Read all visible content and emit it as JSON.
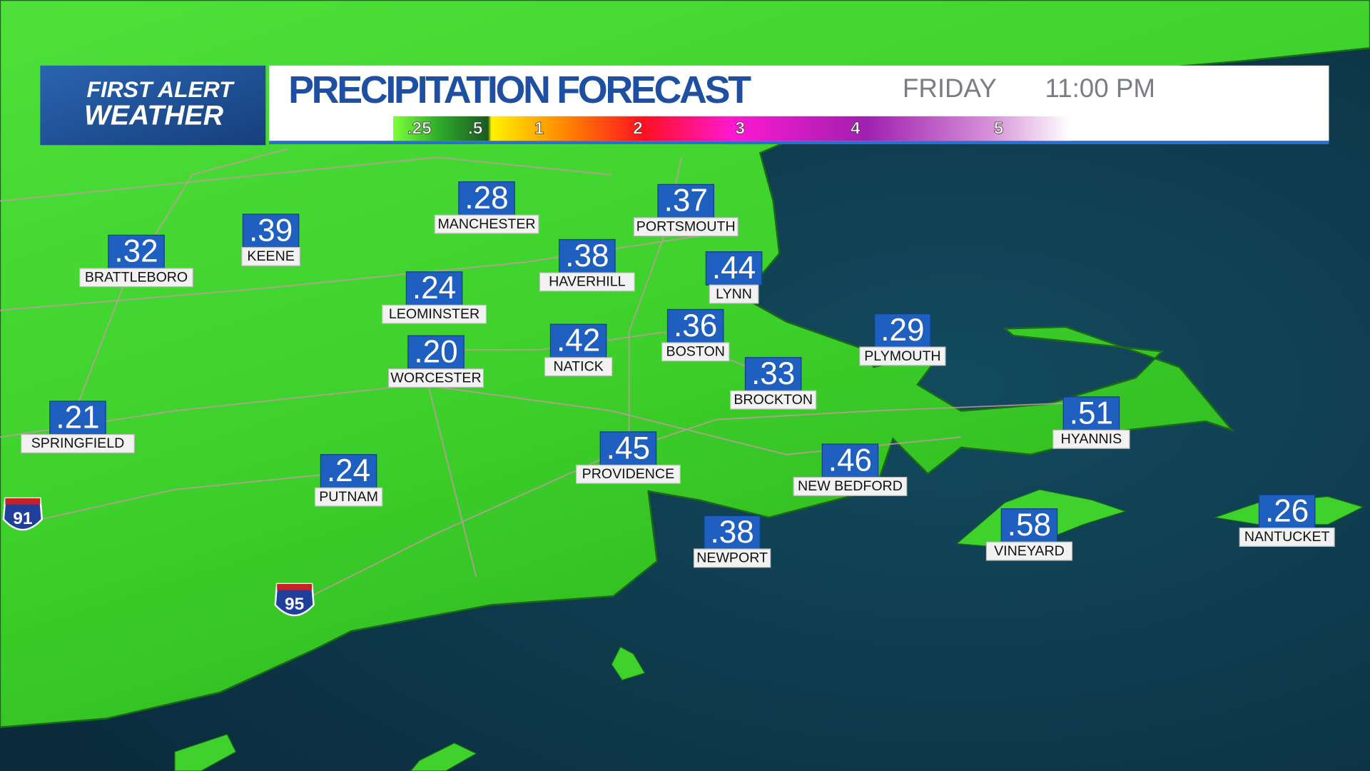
{
  "header": {
    "logo": [
      "FIRST ALERT",
      "WEATHER"
    ],
    "title": "PRECIPITATION FORECAST",
    "day": "FRIDAY",
    "time": "11:00 PM",
    "scale_labels": [
      ".25",
      ".5",
      "1",
      "2",
      "3",
      "4",
      "5"
    ]
  },
  "cities": [
    {
      "name": "MANCHESTER",
      "value": ".28"
    },
    {
      "name": "PORTSMOUTH",
      "value": ".37"
    },
    {
      "name": "KEENE",
      "value": ".39"
    },
    {
      "name": "BRATTLEBORO",
      "value": ".32"
    },
    {
      "name": "HAVERHILL",
      "value": ".38"
    },
    {
      "name": "LYNN",
      "value": ".44"
    },
    {
      "name": "LEOMINSTER",
      "value": ".24"
    },
    {
      "name": "BOSTON",
      "value": ".36"
    },
    {
      "name": "NATICK",
      "value": ".42"
    },
    {
      "name": "PLYMOUTH",
      "value": ".29"
    },
    {
      "name": "WORCESTER",
      "value": ".20"
    },
    {
      "name": "BROCKTON",
      "value": ".33"
    },
    {
      "name": "SPRINGFIELD",
      "value": ".21"
    },
    {
      "name": "HYANNIS",
      "value": ".51"
    },
    {
      "name": "PROVIDENCE",
      "value": ".45"
    },
    {
      "name": "NEW BEDFORD",
      "value": ".46"
    },
    {
      "name": "PUTNAM",
      "value": ".24"
    },
    {
      "name": "NEWPORT",
      "value": ".38"
    },
    {
      "name": "VINEYARD",
      "value": ".58"
    },
    {
      "name": "NANTUCKET",
      "value": ".26"
    }
  ],
  "shields": [
    "91",
    "95"
  ]
}
